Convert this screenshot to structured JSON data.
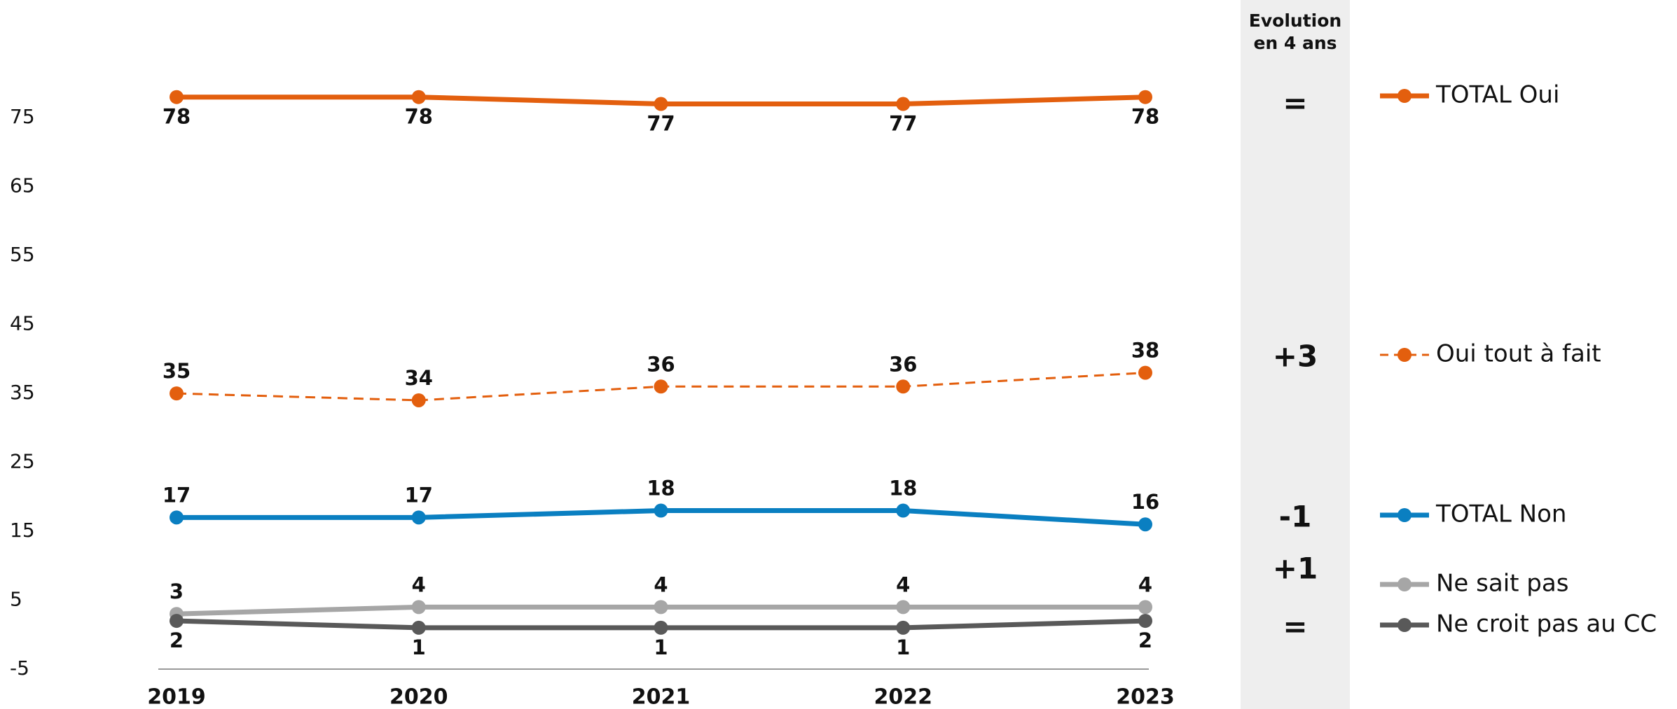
{
  "chart_data": {
    "type": "line",
    "x": [
      "2019",
      "2020",
      "2021",
      "2022",
      "2023"
    ],
    "ylim": [
      -5,
      80
    ],
    "yticks": [
      -5,
      5,
      15,
      25,
      35,
      45,
      55,
      65,
      75
    ],
    "series": [
      {
        "name": "TOTAL Oui",
        "color": "#e35f0e",
        "style": "solid",
        "values": [
          78,
          78,
          77,
          77,
          78
        ]
      },
      {
        "name": "Oui tout à fait",
        "color": "#e35f0e",
        "style": "dashed",
        "values": [
          35,
          34,
          36,
          36,
          38
        ]
      },
      {
        "name": "TOTAL Non",
        "color": "#0a7fc1",
        "style": "solid",
        "values": [
          17,
          17,
          18,
          18,
          16
        ]
      },
      {
        "name": "Ne sait pas",
        "color": "#a6a6a6",
        "style": "solid",
        "values": [
          3,
          4,
          4,
          4,
          4
        ]
      },
      {
        "name": "Ne croit pas au CC",
        "color": "#595959",
        "style": "solid",
        "values": [
          2,
          1,
          1,
          1,
          2
        ]
      }
    ],
    "evolution": {
      "title": "Evolution en 4 ans",
      "values": [
        "=",
        "+3",
        "-1",
        "+1",
        "="
      ]
    }
  }
}
